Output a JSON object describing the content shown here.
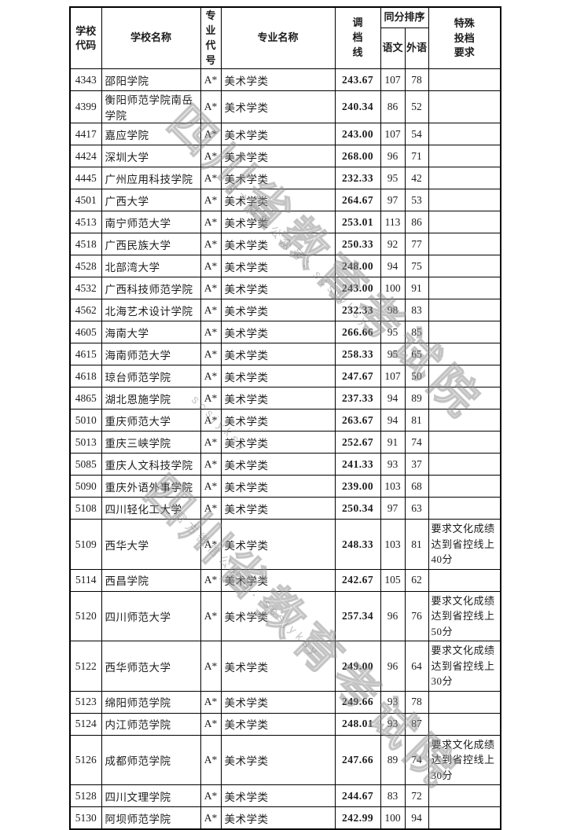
{
  "watermark": {
    "large": "四川省教育考试院",
    "small": "官方微信公众号：scsjyksy",
    "small_short": "scsjyksy"
  },
  "table": {
    "headers": {
      "school_code": "学校代码",
      "school_name": "学校名称",
      "major_code": "专业代号",
      "major_name": "专业名称",
      "score_line": "调档线",
      "tiebreak": "同分排序",
      "chinese": "语文",
      "foreign": "外语",
      "special": "特殊投档要求"
    },
    "rows": [
      {
        "code": "4343",
        "name": "邵阳学院",
        "major_code": "A*",
        "major_name": "美术学类",
        "score": "243.67",
        "chinese": "107",
        "foreign": "78",
        "special": ""
      },
      {
        "code": "4399",
        "name": "衡阳师范学院南岳学院",
        "major_code": "A*",
        "major_name": "美术学类",
        "score": "240.34",
        "chinese": "86",
        "foreign": "52",
        "special": ""
      },
      {
        "code": "4417",
        "name": "嘉应学院",
        "major_code": "A*",
        "major_name": "美术学类",
        "score": "243.00",
        "chinese": "107",
        "foreign": "54",
        "special": ""
      },
      {
        "code": "4424",
        "name": "深圳大学",
        "major_code": "A*",
        "major_name": "美术学类",
        "score": "268.00",
        "chinese": "96",
        "foreign": "71",
        "special": ""
      },
      {
        "code": "4445",
        "name": "广州应用科技学院",
        "major_code": "A*",
        "major_name": "美术学类",
        "score": "232.33",
        "chinese": "95",
        "foreign": "42",
        "special": ""
      },
      {
        "code": "4501",
        "name": "广西大学",
        "major_code": "A*",
        "major_name": "美术学类",
        "score": "264.67",
        "chinese": "97",
        "foreign": "53",
        "special": ""
      },
      {
        "code": "4513",
        "name": "南宁师范大学",
        "major_code": "A*",
        "major_name": "美术学类",
        "score": "253.01",
        "chinese": "113",
        "foreign": "86",
        "special": ""
      },
      {
        "code": "4518",
        "name": "广西民族大学",
        "major_code": "A*",
        "major_name": "美术学类",
        "score": "250.33",
        "chinese": "92",
        "foreign": "77",
        "special": ""
      },
      {
        "code": "4528",
        "name": "北部湾大学",
        "major_code": "A*",
        "major_name": "美术学类",
        "score": "248.00",
        "chinese": "94",
        "foreign": "75",
        "special": ""
      },
      {
        "code": "4532",
        "name": "广西科技师范学院",
        "major_code": "A*",
        "major_name": "美术学类",
        "score": "243.00",
        "chinese": "100",
        "foreign": "91",
        "special": ""
      },
      {
        "code": "4562",
        "name": "北海艺术设计学院",
        "major_code": "A*",
        "major_name": "美术学类",
        "score": "232.33",
        "chinese": "98",
        "foreign": "83",
        "special": ""
      },
      {
        "code": "4605",
        "name": "海南大学",
        "major_code": "A*",
        "major_name": "美术学类",
        "score": "266.66",
        "chinese": "95",
        "foreign": "85",
        "special": ""
      },
      {
        "code": "4615",
        "name": "海南师范大学",
        "major_code": "A*",
        "major_name": "美术学类",
        "score": "258.33",
        "chinese": "95",
        "foreign": "65",
        "special": ""
      },
      {
        "code": "4618",
        "name": "琼台师范学院",
        "major_code": "A*",
        "major_name": "美术学类",
        "score": "247.67",
        "chinese": "107",
        "foreign": "50",
        "special": ""
      },
      {
        "code": "4865",
        "name": "湖北恩施学院",
        "major_code": "A*",
        "major_name": "美术学类",
        "score": "237.33",
        "chinese": "94",
        "foreign": "89",
        "special": ""
      },
      {
        "code": "5010",
        "name": "重庆师范大学",
        "major_code": "A*",
        "major_name": "美术学类",
        "score": "263.67",
        "chinese": "94",
        "foreign": "81",
        "special": ""
      },
      {
        "code": "5013",
        "name": "重庆三峡学院",
        "major_code": "A*",
        "major_name": "美术学类",
        "score": "252.67",
        "chinese": "91",
        "foreign": "74",
        "special": ""
      },
      {
        "code": "5085",
        "name": "重庆人文科技学院",
        "major_code": "A*",
        "major_name": "美术学类",
        "score": "241.33",
        "chinese": "93",
        "foreign": "37",
        "special": ""
      },
      {
        "code": "5090",
        "name": "重庆外语外事学院",
        "major_code": "A*",
        "major_name": "美术学类",
        "score": "239.00",
        "chinese": "103",
        "foreign": "68",
        "special": ""
      },
      {
        "code": "5108",
        "name": "四川轻化工大学",
        "major_code": "A*",
        "major_name": "美术学类",
        "score": "250.34",
        "chinese": "97",
        "foreign": "63",
        "special": ""
      },
      {
        "code": "5109",
        "name": "西华大学",
        "major_code": "A*",
        "major_name": "美术学类",
        "score": "248.33",
        "chinese": "103",
        "foreign": "81",
        "special": "要求文化成绩达到省控线上40分"
      },
      {
        "code": "5114",
        "name": "西昌学院",
        "major_code": "A*",
        "major_name": "美术学类",
        "score": "242.67",
        "chinese": "105",
        "foreign": "62",
        "special": ""
      },
      {
        "code": "5120",
        "name": "四川师范大学",
        "major_code": "A*",
        "major_name": "美术学类",
        "score": "257.34",
        "chinese": "96",
        "foreign": "76",
        "special": "要求文化成绩达到省控线上50分"
      },
      {
        "code": "5122",
        "name": "西华师范大学",
        "major_code": "A*",
        "major_name": "美术学类",
        "score": "249.00",
        "chinese": "96",
        "foreign": "64",
        "special": "要求文化成绩达到省控线上30分"
      },
      {
        "code": "5123",
        "name": "绵阳师范学院",
        "major_code": "A*",
        "major_name": "美术学类",
        "score": "249.66",
        "chinese": "93",
        "foreign": "78",
        "special": ""
      },
      {
        "code": "5124",
        "name": "内江师范学院",
        "major_code": "A*",
        "major_name": "美术学类",
        "score": "248.01",
        "chinese": "93",
        "foreign": "87",
        "special": ""
      },
      {
        "code": "5126",
        "name": "成都师范学院",
        "major_code": "A*",
        "major_name": "美术学类",
        "score": "247.66",
        "chinese": "89",
        "foreign": "74",
        "special": "要求文化成绩达到省控线上30分"
      },
      {
        "code": "5128",
        "name": "四川文理学院",
        "major_code": "A*",
        "major_name": "美术学类",
        "score": "244.67",
        "chinese": "83",
        "foreign": "72",
        "special": ""
      },
      {
        "code": "5130",
        "name": "阿坝师范学院",
        "major_code": "A*",
        "major_name": "美术学类",
        "score": "242.99",
        "chinese": "100",
        "foreign": "94",
        "special": ""
      }
    ]
  }
}
